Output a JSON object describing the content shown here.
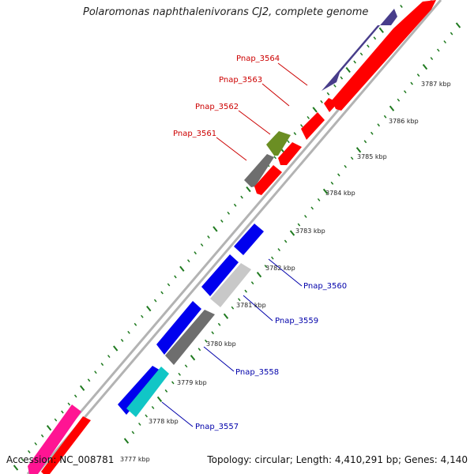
{
  "title": "Polaromonas naphthalenivorans CJ2, complete genome",
  "footer": {
    "accession": "Accession: NC_008781",
    "summary": "Topology: circular; Length: 4,410,291 bp; Genes: 4,140"
  },
  "colors": {
    "backbone": "#b3b3b3",
    "tick": "#1f7a1f",
    "forward_label": "#cc0000",
    "reverse_label": "#0000aa"
  },
  "scale_labels": [
    "3777 kbp",
    "3778 kbp",
    "3779 kbp",
    "3780 kbp",
    "3781 kbp",
    "3782 kbp",
    "3783 kbp",
    "3784 kbp",
    "3785 kbp",
    "3786 kbp",
    "3787 kbp"
  ],
  "gene_labels": [
    {
      "name": "Pnap_3564",
      "color": "#cc0000"
    },
    {
      "name": "Pnap_3563",
      "color": "#cc0000"
    },
    {
      "name": "Pnap_3562",
      "color": "#cc0000"
    },
    {
      "name": "Pnap_3561",
      "color": "#cc0000"
    },
    {
      "name": "Pnap_3560",
      "color": "#0000aa"
    },
    {
      "name": "Pnap_3559",
      "color": "#0000aa"
    },
    {
      "name": "Pnap_3558",
      "color": "#0000aa"
    },
    {
      "name": "Pnap_3557",
      "color": "#0000aa"
    }
  ]
}
